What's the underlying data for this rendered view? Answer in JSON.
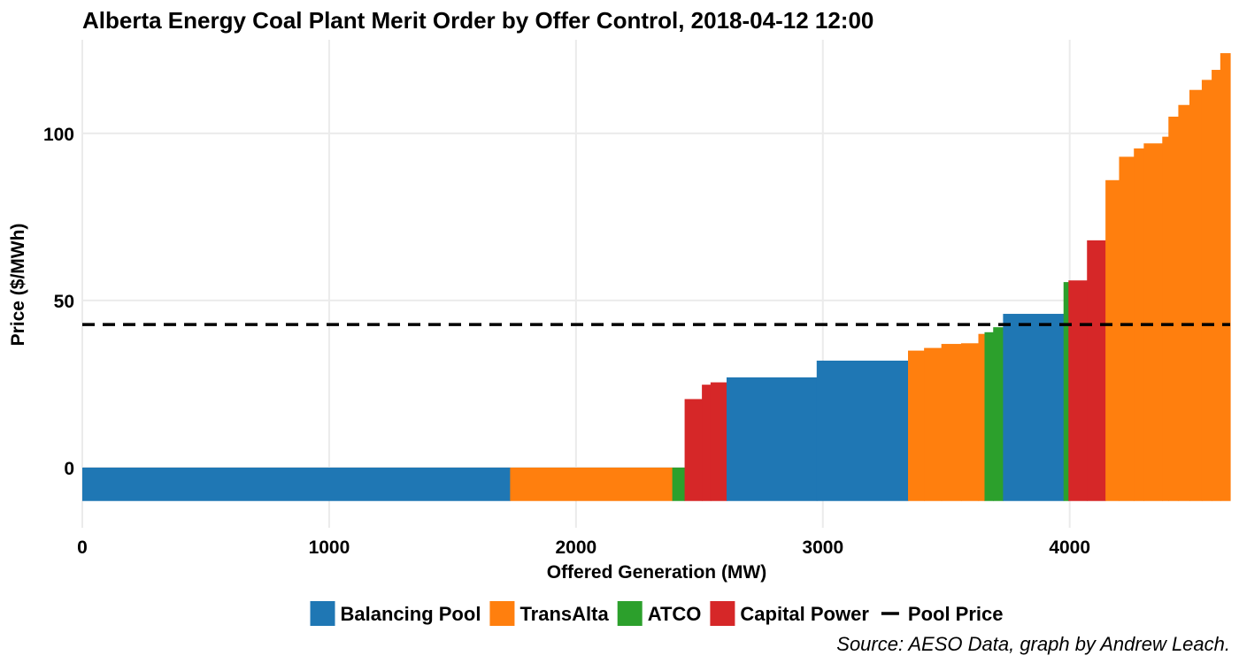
{
  "chart_data": {
    "type": "bar",
    "title": "Alberta Energy Coal Plant Merit Order by Offer Control, 2018-04-12 12:00",
    "xlabel": "Offered Generation (MW)",
    "ylabel": "Price ($/MWh)",
    "caption": "Source: AESO Data, graph by Andrew Leach.",
    "xlim": [
      0,
      4650
    ],
    "ylim": [
      -18,
      128
    ],
    "xticks": [
      0,
      1000,
      2000,
      3000,
      4000
    ],
    "yticks": [
      0,
      50,
      100
    ],
    "grid": true,
    "legend_position": "bottom",
    "bar_base": -10,
    "series": [
      {
        "name": "Balancing Pool",
        "color": "#1f77b4"
      },
      {
        "name": "TransAlta",
        "color": "#ff7f0e"
      },
      {
        "name": "ATCO",
        "color": "#2ca02c"
      },
      {
        "name": "Capital Power",
        "color": "#d62728"
      }
    ],
    "blocks": [
      {
        "series": "Balancing Pool",
        "x_start": 0,
        "x_end": 1733,
        "price": 0
      },
      {
        "series": "TransAlta",
        "x_start": 1733,
        "x_end": 2390,
        "price": 0
      },
      {
        "series": "ATCO",
        "x_start": 2390,
        "x_end": 2440,
        "price": 0
      },
      {
        "series": "Capital Power",
        "x_start": 2440,
        "x_end": 2510,
        "price": 20.5
      },
      {
        "series": "Capital Power",
        "x_start": 2510,
        "x_end": 2545,
        "price": 24.8
      },
      {
        "series": "Capital Power",
        "x_start": 2545,
        "x_end": 2610,
        "price": 25.5
      },
      {
        "series": "Balancing Pool",
        "x_start": 2610,
        "x_end": 2975,
        "price": 27
      },
      {
        "series": "Balancing Pool",
        "x_start": 2975,
        "x_end": 3345,
        "price": 32
      },
      {
        "series": "TransAlta",
        "x_start": 3345,
        "x_end": 3410,
        "price": 35
      },
      {
        "series": "TransAlta",
        "x_start": 3410,
        "x_end": 3480,
        "price": 35.8
      },
      {
        "series": "TransAlta",
        "x_start": 3480,
        "x_end": 3560,
        "price": 37
      },
      {
        "series": "TransAlta",
        "x_start": 3560,
        "x_end": 3630,
        "price": 37.2
      },
      {
        "series": "TransAlta",
        "x_start": 3630,
        "x_end": 3655,
        "price": 40
      },
      {
        "series": "ATCO",
        "x_start": 3655,
        "x_end": 3690,
        "price": 40.5
      },
      {
        "series": "ATCO",
        "x_start": 3690,
        "x_end": 3730,
        "price": 42
      },
      {
        "series": "Balancing Pool",
        "x_start": 3730,
        "x_end": 3975,
        "price": 46
      },
      {
        "series": "ATCO",
        "x_start": 3975,
        "x_end": 3995,
        "price": 55.5
      },
      {
        "series": "Capital Power",
        "x_start": 3995,
        "x_end": 4070,
        "price": 56
      },
      {
        "series": "Capital Power",
        "x_start": 4070,
        "x_end": 4145,
        "price": 68
      },
      {
        "series": "TransAlta",
        "x_start": 4145,
        "x_end": 4200,
        "price": 86
      },
      {
        "series": "TransAlta",
        "x_start": 4200,
        "x_end": 4260,
        "price": 93
      },
      {
        "series": "TransAlta",
        "x_start": 4260,
        "x_end": 4300,
        "price": 95.5
      },
      {
        "series": "TransAlta",
        "x_start": 4300,
        "x_end": 4375,
        "price": 97
      },
      {
        "series": "TransAlta",
        "x_start": 4375,
        "x_end": 4400,
        "price": 99
      },
      {
        "series": "TransAlta",
        "x_start": 4400,
        "x_end": 4440,
        "price": 105
      },
      {
        "series": "TransAlta",
        "x_start": 4440,
        "x_end": 4485,
        "price": 108.5
      },
      {
        "series": "TransAlta",
        "x_start": 4485,
        "x_end": 4535,
        "price": 113
      },
      {
        "series": "TransAlta",
        "x_start": 4535,
        "x_end": 4575,
        "price": 116
      },
      {
        "series": "TransAlta",
        "x_start": 4575,
        "x_end": 4610,
        "price": 119
      },
      {
        "series": "TransAlta",
        "x_start": 4610,
        "x_end": 4650,
        "price": 124
      }
    ],
    "pool_price": {
      "name": "Pool Price",
      "value": 42.8,
      "color": "#000000"
    }
  }
}
